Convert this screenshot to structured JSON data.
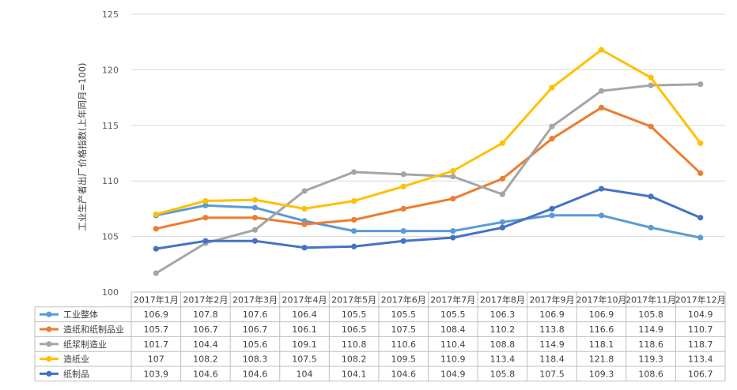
{
  "chart_data": {
    "type": "line",
    "ylabel": "工业生产者出厂价格指数(上年同月=100)",
    "ylim": [
      100,
      125
    ],
    "yticks": [
      100,
      105,
      110,
      115,
      120,
      125
    ],
    "grid": true,
    "legend": "table-below",
    "categories": [
      "2017年1月",
      "2017年2月",
      "2017年3月",
      "2017年4月",
      "2017年5月",
      "2017年6月",
      "2017年7月",
      "2017年8月",
      "2017年9月",
      "2017年10月",
      "2017年11月",
      "2017年12月"
    ],
    "series": [
      {
        "name": "工业整体",
        "color": "#5b9bd5",
        "values": [
          106.9,
          107.8,
          107.6,
          106.4,
          105.5,
          105.5,
          105.5,
          106.3,
          106.9,
          106.9,
          105.8,
          104.9
        ],
        "labels": [
          "106.9",
          "107.8",
          "107.6",
          "106.4",
          "105.5",
          "105.5",
          "105.5",
          "106.3",
          "106.9",
          "106.9",
          "105.8",
          "104.9"
        ]
      },
      {
        "name": "造纸和纸制品业",
        "color": "#ed7d31",
        "values": [
          105.7,
          106.7,
          106.7,
          106.1,
          106.5,
          107.5,
          108.4,
          110.2,
          113.8,
          116.6,
          114.9,
          110.7
        ],
        "labels": [
          "105.7",
          "106.7",
          "106.7",
          "106.1",
          "106.5",
          "107.5",
          "108.4",
          "110.2",
          "113.8",
          "116.6",
          "114.9",
          "110.7"
        ]
      },
      {
        "name": "纸浆制造业",
        "color": "#a5a5a5",
        "values": [
          101.7,
          104.4,
          105.6,
          109.1,
          110.8,
          110.6,
          110.4,
          108.8,
          114.9,
          118.1,
          118.6,
          118.7
        ],
        "labels": [
          "101.7",
          "104.4",
          "105.6",
          "109.1",
          "110.8",
          "110.6",
          "110.4",
          "108.8",
          "114.9",
          "118.1",
          "118.6",
          "118.7"
        ]
      },
      {
        "name": "造纸业",
        "color": "#ffc000",
        "values": [
          107,
          108.2,
          108.3,
          107.5,
          108.2,
          109.5,
          110.9,
          113.4,
          118.4,
          121.8,
          119.3,
          113.4
        ],
        "labels": [
          "107",
          "108.2",
          "108.3",
          "107.5",
          "108.2",
          "109.5",
          "110.9",
          "113.4",
          "118.4",
          "121.8",
          "119.3",
          "113.4"
        ]
      },
      {
        "name": "纸制品",
        "color": "#4472c4",
        "values": [
          103.9,
          104.6,
          104.6,
          104,
          104.1,
          104.6,
          104.9,
          105.8,
          107.5,
          109.3,
          108.6,
          106.7
        ],
        "labels": [
          "103.9",
          "104.6",
          "104.6",
          "104",
          "104.1",
          "104.6",
          "104.9",
          "105.8",
          "107.5",
          "109.3",
          "108.6",
          "106.7"
        ]
      }
    ]
  }
}
